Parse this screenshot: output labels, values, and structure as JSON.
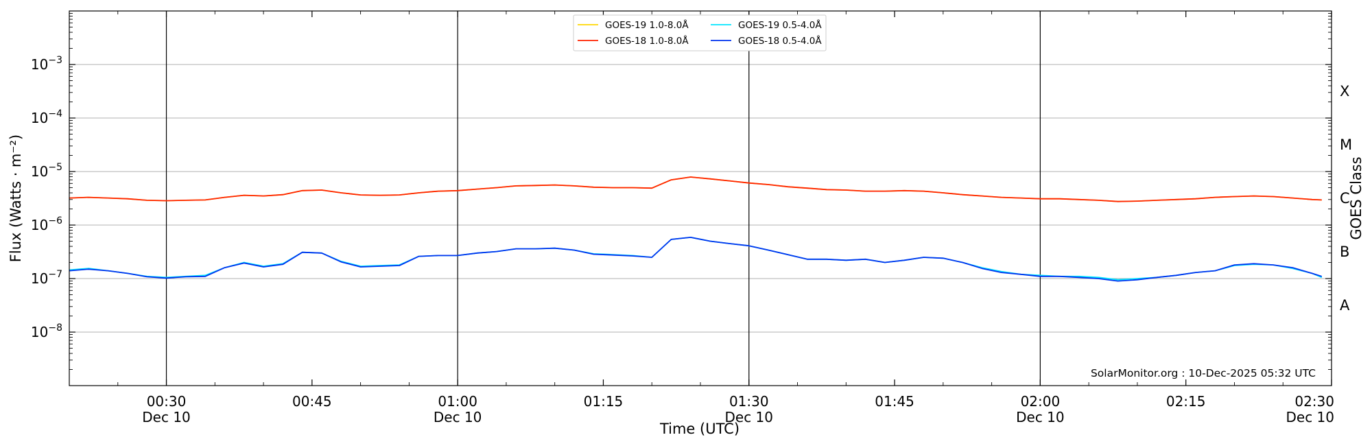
{
  "chart_data": {
    "type": "line",
    "title": "",
    "xlabel": "Time (UTC)",
    "ylabel": "Flux (Watts · m⁻²)",
    "y2label": "GOES Class",
    "yscale": "log",
    "ylim": [
      1e-09,
      0.01
    ],
    "x_unit": "minutes after Dec 10 00:00 UTC",
    "xlim": [
      20,
      150
    ],
    "x_ticks": [
      {
        "x": 30,
        "time": "00:30",
        "date": "Dec 10"
      },
      {
        "x": 45,
        "time": "00:45",
        "date": ""
      },
      {
        "x": 60,
        "time": "01:00",
        "date": "Dec 10"
      },
      {
        "x": 75,
        "time": "01:15",
        "date": ""
      },
      {
        "x": 90,
        "time": "01:30",
        "date": "Dec 10"
      },
      {
        "x": 105,
        "time": "01:45",
        "date": ""
      },
      {
        "x": 120,
        "time": "02:00",
        "date": "Dec 10"
      },
      {
        "x": 135,
        "time": "02:15",
        "date": ""
      },
      {
        "x": 150,
        "time": "02:30",
        "date": "Dec 10"
      }
    ],
    "y_ticks": [
      {
        "value": 1e-08,
        "base": "10",
        "exp": "−8"
      },
      {
        "value": 1e-07,
        "base": "10",
        "exp": "−7"
      },
      {
        "value": 1e-06,
        "base": "10",
        "exp": "−6"
      },
      {
        "value": 1e-05,
        "base": "10",
        "exp": "−5"
      },
      {
        "value": 0.0001,
        "base": "10",
        "exp": "−4"
      },
      {
        "value": 0.001,
        "base": "10",
        "exp": "−3"
      }
    ],
    "goes_classes": [
      {
        "label": "A",
        "value": 3.16e-08
      },
      {
        "label": "B",
        "value": 3.16e-07
      },
      {
        "label": "C",
        "value": 3.16e-06
      },
      {
        "label": "M",
        "value": 3.16e-05
      },
      {
        "label": "X",
        "value": 0.000316
      }
    ],
    "vlines": [
      30,
      60,
      90,
      120
    ],
    "grid": "horizontal",
    "legend_location": "upper center",
    "credit": "SolarMonitor.org : 10-Dec-2025 05:32 UTC",
    "series": [
      {
        "name": "GOES-19 1.0-8.0Å",
        "color": "#ffd700",
        "x": [
          20,
          22,
          24,
          26,
          28,
          30,
          32,
          34,
          36,
          38,
          40,
          42,
          44,
          46,
          48,
          50,
          52,
          54,
          56,
          58,
          60,
          62,
          64,
          66,
          68,
          70,
          72,
          74,
          76,
          78,
          80,
          82,
          84,
          86,
          88,
          90,
          92,
          94,
          96,
          98,
          100,
          102,
          104,
          106,
          108,
          110,
          112,
          114,
          116,
          118,
          120,
          122,
          124,
          126,
          128,
          130,
          132,
          134,
          136,
          138,
          140,
          142,
          144,
          146,
          148,
          149
        ],
        "values": [
          3.2e-06,
          3.3e-06,
          3.2e-06,
          3.1e-06,
          2.9e-06,
          2.85e-06,
          2.9e-06,
          2.95e-06,
          3.3e-06,
          3.6e-06,
          3.5e-06,
          3.7e-06,
          4.4e-06,
          4.5e-06,
          4e-06,
          3.65e-06,
          3.6e-06,
          3.65e-06,
          4e-06,
          4.3e-06,
          4.4e-06,
          4.7e-06,
          5e-06,
          5.4e-06,
          5.5e-06,
          5.6e-06,
          5.4e-06,
          5.1e-06,
          5e-06,
          5e-06,
          4.9e-06,
          7e-06,
          7.9e-06,
          7.3e-06,
          6.7e-06,
          6.1e-06,
          5.7e-06,
          5.2e-06,
          4.9e-06,
          4.6e-06,
          4.5e-06,
          4.3e-06,
          4.3e-06,
          4.4e-06,
          4.3e-06,
          4e-06,
          3.7e-06,
          3.5e-06,
          3.3e-06,
          3.2e-06,
          3.1e-06,
          3.1e-06,
          3e-06,
          2.9e-06,
          2.75e-06,
          2.8e-06,
          2.9e-06,
          3e-06,
          3.1e-06,
          3.3e-06,
          3.4e-06,
          3.5e-06,
          3.4e-06,
          3.2e-06,
          3e-06,
          2.95e-06
        ]
      },
      {
        "name": "GOES-18 1.0-8.0Å",
        "color": "#ff2200",
        "x": [
          20,
          22,
          24,
          26,
          28,
          30,
          32,
          34,
          36,
          38,
          40,
          42,
          44,
          46,
          48,
          50,
          52,
          54,
          56,
          58,
          60,
          62,
          64,
          66,
          68,
          70,
          72,
          74,
          76,
          78,
          80,
          82,
          84,
          86,
          88,
          90,
          92,
          94,
          96,
          98,
          100,
          102,
          104,
          106,
          108,
          110,
          112,
          114,
          116,
          118,
          120,
          122,
          124,
          126,
          128,
          130,
          132,
          134,
          136,
          138,
          140,
          142,
          144,
          146,
          148,
          149
        ],
        "values": [
          3.2e-06,
          3.3e-06,
          3.2e-06,
          3.1e-06,
          2.9e-06,
          2.85e-06,
          2.9e-06,
          2.95e-06,
          3.3e-06,
          3.6e-06,
          3.5e-06,
          3.7e-06,
          4.4e-06,
          4.5e-06,
          4e-06,
          3.65e-06,
          3.6e-06,
          3.65e-06,
          4e-06,
          4.3e-06,
          4.4e-06,
          4.7e-06,
          5e-06,
          5.4e-06,
          5.5e-06,
          5.6e-06,
          5.4e-06,
          5.1e-06,
          5e-06,
          5e-06,
          4.9e-06,
          7e-06,
          7.9e-06,
          7.3e-06,
          6.7e-06,
          6.1e-06,
          5.7e-06,
          5.2e-06,
          4.9e-06,
          4.6e-06,
          4.5e-06,
          4.3e-06,
          4.3e-06,
          4.4e-06,
          4.3e-06,
          4e-06,
          3.7e-06,
          3.5e-06,
          3.3e-06,
          3.2e-06,
          3.1e-06,
          3.1e-06,
          3e-06,
          2.9e-06,
          2.75e-06,
          2.8e-06,
          2.9e-06,
          3e-06,
          3.1e-06,
          3.3e-06,
          3.4e-06,
          3.5e-06,
          3.4e-06,
          3.2e-06,
          3e-06,
          2.95e-06
        ]
      },
      {
        "name": "GOES-19 0.5-4.0Å",
        "color": "#00e5ff",
        "x": [
          20,
          22,
          24,
          26,
          28,
          30,
          32,
          34,
          36,
          38,
          40,
          42,
          44,
          46,
          48,
          50,
          52,
          54,
          56,
          58,
          60,
          62,
          64,
          66,
          68,
          70,
          72,
          74,
          76,
          78,
          80,
          82,
          84,
          86,
          88,
          90,
          92,
          94,
          96,
          98,
          100,
          102,
          104,
          106,
          108,
          110,
          112,
          114,
          116,
          118,
          120,
          122,
          124,
          126,
          128,
          130,
          132,
          134,
          136,
          138,
          140,
          142,
          144,
          146,
          148,
          149
        ],
        "values": [
          1.45e-07,
          1.55e-07,
          1.4e-07,
          1.25e-07,
          1.1e-07,
          1.05e-07,
          1.1e-07,
          1.15e-07,
          1.6e-07,
          2e-07,
          1.7e-07,
          1.9e-07,
          3.1e-07,
          3e-07,
          2.1e-07,
          1.7e-07,
          1.75e-07,
          1.8e-07,
          2.6e-07,
          2.7e-07,
          2.7e-07,
          3e-07,
          3.2e-07,
          3.6e-07,
          3.6e-07,
          3.7e-07,
          3.4e-07,
          2.9e-07,
          2.8e-07,
          2.7e-07,
          2.5e-07,
          5.4e-07,
          5.9e-07,
          5e-07,
          4.5e-07,
          4.1e-07,
          3.4e-07,
          2.8e-07,
          2.3e-07,
          2.3e-07,
          2.2e-07,
          2.3e-07,
          2e-07,
          2.2e-07,
          2.5e-07,
          2.4e-07,
          2e-07,
          1.6e-07,
          1.35e-07,
          1.2e-07,
          1.15e-07,
          1.1e-07,
          1.1e-07,
          1.05e-07,
          9.5e-08,
          1e-07,
          1.05e-07,
          1.15e-07,
          1.3e-07,
          1.4e-07,
          1.75e-07,
          1.85e-07,
          1.8e-07,
          1.55e-07,
          1.25e-07,
          1.05e-07
        ]
      },
      {
        "name": "GOES-18 0.5-4.0Å",
        "color": "#0033ee",
        "x": [
          20,
          22,
          24,
          26,
          28,
          30,
          32,
          34,
          36,
          38,
          40,
          42,
          44,
          46,
          48,
          50,
          52,
          54,
          56,
          58,
          60,
          62,
          64,
          66,
          68,
          70,
          72,
          74,
          76,
          78,
          80,
          82,
          84,
          86,
          88,
          90,
          92,
          94,
          96,
          98,
          100,
          102,
          104,
          106,
          108,
          110,
          112,
          114,
          116,
          118,
          120,
          122,
          124,
          126,
          128,
          130,
          132,
          134,
          136,
          138,
          140,
          142,
          144,
          146,
          148,
          149
        ],
        "values": [
          1.4e-07,
          1.5e-07,
          1.4e-07,
          1.25e-07,
          1.08e-07,
          1.02e-07,
          1.08e-07,
          1.1e-07,
          1.6e-07,
          1.95e-07,
          1.65e-07,
          1.85e-07,
          3.1e-07,
          3e-07,
          2.05e-07,
          1.65e-07,
          1.7e-07,
          1.75e-07,
          2.6e-07,
          2.7e-07,
          2.7e-07,
          3e-07,
          3.2e-07,
          3.6e-07,
          3.6e-07,
          3.7e-07,
          3.4e-07,
          2.85e-07,
          2.75e-07,
          2.65e-07,
          2.5e-07,
          5.4e-07,
          5.9e-07,
          5e-07,
          4.5e-07,
          4.1e-07,
          3.4e-07,
          2.8e-07,
          2.3e-07,
          2.3e-07,
          2.2e-07,
          2.3e-07,
          2e-07,
          2.2e-07,
          2.5e-07,
          2.4e-07,
          2e-07,
          1.55e-07,
          1.3e-07,
          1.2e-07,
          1.1e-07,
          1.1e-07,
          1.05e-07,
          1e-07,
          9e-08,
          9.5e-08,
          1.05e-07,
          1.15e-07,
          1.3e-07,
          1.4e-07,
          1.8e-07,
          1.9e-07,
          1.8e-07,
          1.6e-07,
          1.25e-07,
          1.1e-07
        ]
      }
    ]
  }
}
